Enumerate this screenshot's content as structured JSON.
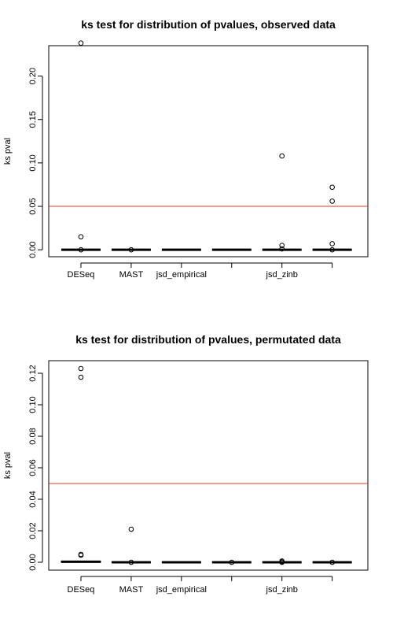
{
  "chart_data": [
    {
      "type": "box",
      "title": "ks test for distribution of pvalues, observed data",
      "xlabel": "",
      "ylabel": "ks pval",
      "ylim": [
        -0.008,
        0.235
      ],
      "yticks": [
        0.0,
        0.05,
        0.1,
        0.15,
        0.2
      ],
      "ytick_labels": [
        "0.00",
        "0.05",
        "0.10",
        "0.15",
        "0.20"
      ],
      "categories": [
        "DESeq",
        "MAST",
        "jsd_empirical",
        "",
        "jsd_zinb",
        ""
      ],
      "boxes": [
        {
          "median": 0.0,
          "q1": 0.0,
          "q3": 0.0,
          "outliers": [
            0.238,
            0.015,
            0.0
          ]
        },
        {
          "median": 0.0,
          "q1": 0.0,
          "q3": 0.0,
          "outliers": [
            0.0
          ]
        },
        {
          "median": 0.0,
          "q1": 0.0,
          "q3": 0.0,
          "outliers": []
        },
        {
          "median": 0.0,
          "q1": 0.0,
          "q3": 0.0,
          "outliers": []
        },
        {
          "median": 0.0,
          "q1": 0.0,
          "q3": 0.0,
          "outliers": [
            0.108,
            0.005,
            0.001
          ]
        },
        {
          "median": 0.0,
          "q1": 0.0,
          "q3": 0.0,
          "outliers": [
            0.072,
            0.056,
            0.007,
            0.0
          ]
        }
      ],
      "reference_line": {
        "y": 0.05,
        "color": "#e8302a"
      }
    },
    {
      "type": "box",
      "title": "ks test for distribution of pvalues, permutated data",
      "xlabel": "",
      "ylabel": "ks pval",
      "ylim": [
        -0.005,
        0.128
      ],
      "yticks": [
        0.0,
        0.02,
        0.04,
        0.06,
        0.08,
        0.1,
        0.12
      ],
      "ytick_labels": [
        "0.00",
        "0.02",
        "0.04",
        "0.06",
        "0.08",
        "0.10",
        "0.12"
      ],
      "categories": [
        "DESeq",
        "MAST",
        "jsd_empirical",
        "",
        "jsd_zinb",
        ""
      ],
      "boxes": [
        {
          "median": 0.0003,
          "q1": 0.0,
          "q3": 0.0008,
          "outliers": [
            0.123,
            0.1175,
            0.005,
            0.0045
          ]
        },
        {
          "median": 0.0,
          "q1": 0.0,
          "q3": 0.0,
          "outliers": [
            0.021,
            0.0
          ]
        },
        {
          "median": 0.0,
          "q1": 0.0,
          "q3": 0.0,
          "outliers": []
        },
        {
          "median": 0.0,
          "q1": 0.0,
          "q3": 0.0,
          "outliers": [
            0.0
          ]
        },
        {
          "median": 0.0,
          "q1": 0.0,
          "q3": 0.0,
          "outliers": [
            0.0008,
            0.0003,
            0.0
          ]
        },
        {
          "median": 0.0,
          "q1": 0.0,
          "q3": 0.0,
          "outliers": [
            0.0
          ]
        }
      ],
      "reference_line": {
        "y": 0.05,
        "color": "#e8302a"
      }
    }
  ]
}
